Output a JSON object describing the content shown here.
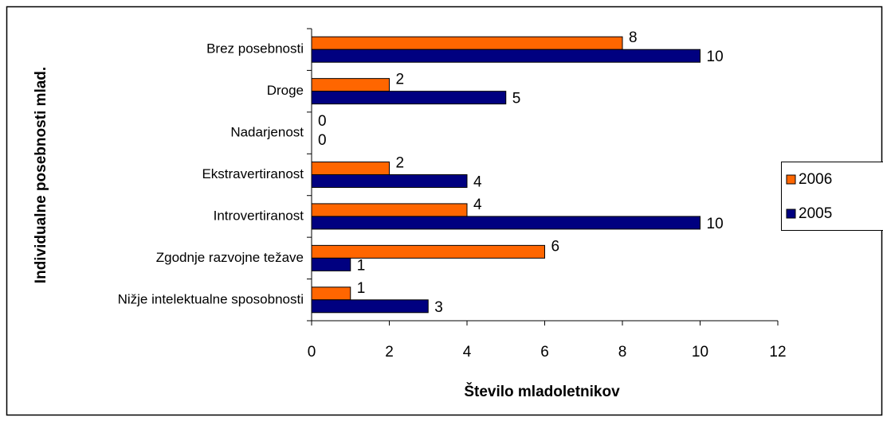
{
  "chart_data": {
    "type": "hbar",
    "xlabel": "Število mladoletnikov",
    "ylabel": "Individualne posebnosti mlad.",
    "categories": [
      "Brez posebnosti",
      "Droge",
      "Nadarjenost",
      "Ekstravertiranost",
      "Introvertiranost",
      "Zgodnje razvojne težave",
      "Nižje intelektualne sposobnosti"
    ],
    "series": [
      {
        "name": "2006",
        "color": "#ff6600",
        "values": [
          8,
          2,
          0,
          2,
          4,
          6,
          1
        ]
      },
      {
        "name": "2005",
        "color": "#000080",
        "values": [
          10,
          5,
          0,
          4,
          10,
          1,
          3
        ]
      }
    ],
    "xlim": [
      0,
      12
    ],
    "xticks": [
      0,
      2,
      4,
      6,
      8,
      10,
      12
    ],
    "grid": false,
    "legend": "right"
  }
}
